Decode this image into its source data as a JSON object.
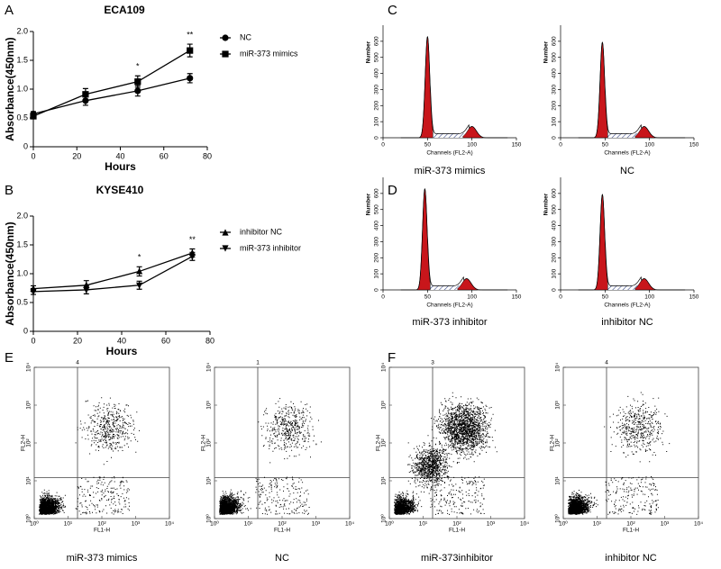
{
  "chart_data": [
    {
      "type": "line",
      "panel": "A",
      "title": "ECA109",
      "x_label": "Hours",
      "y_label": "Absorbance(450nm)",
      "x": [
        0,
        24,
        48,
        72
      ],
      "xlim": [
        0,
        80
      ],
      "xticks": [
        0,
        20,
        40,
        60,
        80
      ],
      "ylim": [
        0,
        2
      ],
      "yticks": [
        0,
        0.5,
        {
          "value": 1,
          "label": "1.0"
        },
        1.5,
        {
          "value": 2,
          "label": "2.0"
        }
      ],
      "series": [
        {
          "name": "NC",
          "marker": "circle",
          "color": "#000000",
          "values": [
            0.57,
            0.8,
            0.97,
            1.19
          ],
          "errors": [
            0.04,
            0.08,
            0.09,
            0.08
          ]
        },
        {
          "name": "miR-373 mimics",
          "marker": "square",
          "color": "#000000",
          "values": [
            0.53,
            0.91,
            1.13,
            1.67
          ],
          "errors": [
            0.04,
            0.1,
            0.1,
            0.11
          ]
        }
      ],
      "annotations": [
        {
          "x": 48,
          "text": "*"
        },
        {
          "x": 72,
          "text": "**"
        }
      ]
    },
    {
      "type": "line",
      "panel": "B",
      "title": "KYSE410",
      "x_label": "Hours",
      "y_label": "Absorbance(450nm)",
      "x": [
        0,
        24,
        48,
        72
      ],
      "xlim": [
        0,
        80
      ],
      "xticks": [
        0,
        20,
        40,
        60,
        80
      ],
      "ylim": [
        0,
        2
      ],
      "yticks": [
        0,
        0.5,
        {
          "value": 1,
          "label": "1.0"
        },
        1.5,
        {
          "value": 2,
          "label": "2.0"
        }
      ],
      "series": [
        {
          "name": "inhibitor NC",
          "marker": "triangle-up",
          "color": "#000000",
          "values": [
            0.74,
            0.8,
            1.04,
            1.36
          ],
          "errors": [
            0.05,
            0.08,
            0.08,
            0.07
          ]
        },
        {
          "name": "miR-373 inhibitor",
          "marker": "triangle-down",
          "color": "#000000",
          "values": [
            0.69,
            0.72,
            0.8,
            1.3
          ],
          "errors": [
            0.05,
            0.07,
            0.07,
            0.07
          ]
        }
      ],
      "annotations": [
        {
          "x": 48,
          "text": "*"
        },
        {
          "x": 72,
          "text": "**"
        }
      ]
    }
  ],
  "histograms": {
    "x_label": "Channels (FL2-A)",
    "y_label": "Number",
    "xlim": [
      0,
      150
    ],
    "xticks": [
      0,
      50,
      100,
      150
    ],
    "ylim": [
      0,
      700
    ],
    "yticks": [
      0,
      100,
      200,
      300,
      400,
      500,
      600
    ],
    "panels": [
      {
        "label": "C",
        "captions": [
          "miR-373 mimics",
          "NC"
        ]
      },
      {
        "label": "D",
        "captions": [
          "miR-373 inhibitor",
          "inhibitor NC"
        ]
      }
    ]
  },
  "flow_plots": {
    "x_label": "FL1-H",
    "y_label": "FL2-H",
    "log_scale": true,
    "ticks": [
      {
        "value": 1,
        "label": "10⁰"
      },
      {
        "value": 10,
        "label": "10¹"
      },
      {
        "value": 100,
        "label": "10²"
      },
      {
        "value": 1000,
        "label": "10³"
      },
      {
        "value": 10000,
        "label": "10⁴"
      }
    ],
    "panels": [
      {
        "label": "E",
        "plots": [
          {
            "caption": "miR-373 mimics",
            "quadrant_label": "4"
          },
          {
            "caption": "NC",
            "quadrant_label": "1"
          }
        ]
      },
      {
        "label": "F",
        "plots": [
          {
            "caption": "miR-373inhibitor",
            "quadrant_label": "3"
          },
          {
            "caption": "inhibitor NC",
            "quadrant_label": "4"
          }
        ]
      }
    ]
  }
}
